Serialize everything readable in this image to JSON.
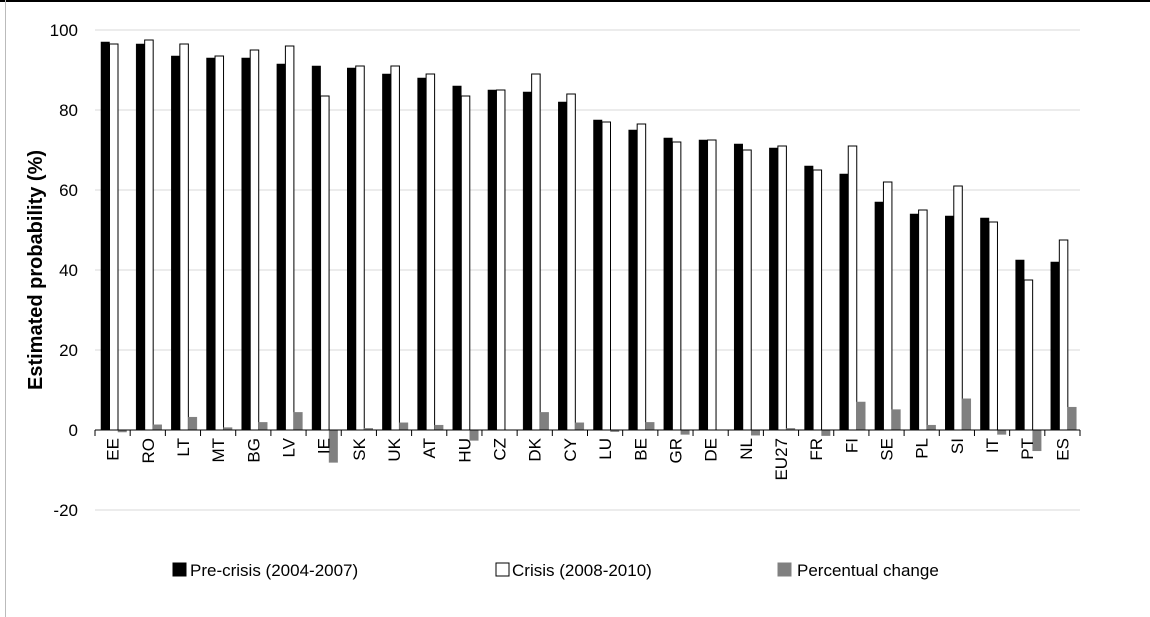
{
  "chart_data": {
    "type": "bar",
    "title": "",
    "xlabel": "",
    "ylabel": "Estimated probability (%)",
    "ylim": [
      -20,
      100
    ],
    "yticks": [
      -20,
      0,
      20,
      40,
      60,
      80,
      100
    ],
    "grid": true,
    "legend_position": "bottom",
    "categories": [
      "EE",
      "RO",
      "LT",
      "MT",
      "BG",
      "LV",
      "IE",
      "SK",
      "UK",
      "AT",
      "HU",
      "CZ",
      "DK",
      "CY",
      "LU",
      "BE",
      "GR",
      "DE",
      "NL",
      "EU27",
      "FR",
      "FI",
      "SE",
      "PL",
      "SI",
      "IT",
      "PT",
      "ES"
    ],
    "series": [
      {
        "name": "Pre-crisis (2004-2007)",
        "color": "#000000",
        "values": [
          97,
          96.5,
          93.5,
          93,
          93,
          91.5,
          91,
          90.5,
          89,
          88,
          86,
          85,
          84.5,
          82,
          77.5,
          75,
          73,
          72.5,
          71.5,
          70.5,
          66,
          64,
          57,
          54,
          53.5,
          53,
          42.5,
          42
        ]
      },
      {
        "name": "Crisis (2008-2010)",
        "color": "#ffffff",
        "values": [
          96.5,
          97.5,
          96.5,
          93.5,
          95,
          96,
          83.5,
          91,
          91,
          89,
          83.5,
          85,
          89,
          84,
          77,
          76.5,
          72,
          72.5,
          70,
          71,
          65,
          71,
          62,
          55,
          61,
          52,
          37.5,
          47.5
        ]
      },
      {
        "name": "Percentual change",
        "color": "#808080",
        "values": [
          -0.5,
          1.3,
          3.2,
          0.6,
          1.9,
          4.4,
          -8.1,
          0.4,
          1.8,
          1.2,
          -2.6,
          0,
          4.4,
          1.8,
          -0.4,
          1.9,
          -1.1,
          0,
          -1.3,
          0.4,
          -1.4,
          7,
          5.1,
          1.2,
          7.8,
          -1.1,
          -5.2,
          5.7
        ]
      }
    ]
  }
}
